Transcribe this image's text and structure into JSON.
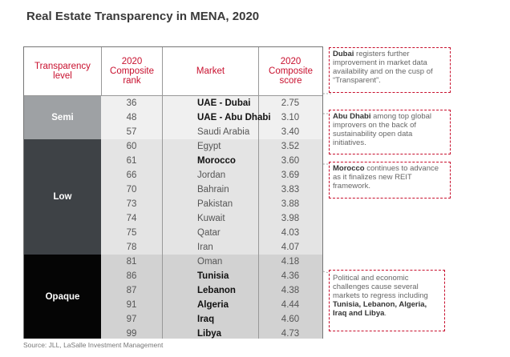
{
  "title": "Real Estate Transparency in MENA, 2020",
  "headers": {
    "level": "Transparency level",
    "rank": "2020 Composite rank",
    "market": "Market",
    "score": "2020 Composite score"
  },
  "levels": {
    "semi": "Semi",
    "low": "Low",
    "opaque": "Opaque"
  },
  "chart_data": {
    "type": "table",
    "title": "Real Estate Transparency in MENA, 2020",
    "columns": [
      "Transparency level",
      "2020 Composite rank",
      "Market",
      "2020 Composite score"
    ],
    "rows": [
      {
        "level": "Semi",
        "rank": "36",
        "market": "UAE - Dubai",
        "score": "2.75",
        "bold": true
      },
      {
        "level": "Semi",
        "rank": "48",
        "market": "UAE - Abu Dhabi",
        "score": "3.10",
        "bold": true
      },
      {
        "level": "Semi",
        "rank": "57",
        "market": "Saudi Arabia",
        "score": "3.40",
        "bold": false
      },
      {
        "level": "Low",
        "rank": "60",
        "market": "Egypt",
        "score": "3.52",
        "bold": false
      },
      {
        "level": "Low",
        "rank": "61",
        "market": "Morocco",
        "score": "3.60",
        "bold": true
      },
      {
        "level": "Low",
        "rank": "66",
        "market": "Jordan",
        "score": "3.69",
        "bold": false
      },
      {
        "level": "Low",
        "rank": "70",
        "market": "Bahrain",
        "score": "3.83",
        "bold": false
      },
      {
        "level": "Low",
        "rank": "73",
        "market": "Pakistan",
        "score": "3.88",
        "bold": false
      },
      {
        "level": "Low",
        "rank": "74",
        "market": "Kuwait",
        "score": "3.98",
        "bold": false
      },
      {
        "level": "Low",
        "rank": "75",
        "market": "Qatar",
        "score": "4.03",
        "bold": false
      },
      {
        "level": "Low",
        "rank": "78",
        "market": "Iran",
        "score": "4.07",
        "bold": false
      },
      {
        "level": "Opaque",
        "rank": "81",
        "market": "Oman",
        "score": "4.18",
        "bold": false
      },
      {
        "level": "Opaque",
        "rank": "86",
        "market": "Tunisia",
        "score": "4.36",
        "bold": true
      },
      {
        "level": "Opaque",
        "rank": "87",
        "market": "Lebanon",
        "score": "4.38",
        "bold": true
      },
      {
        "level": "Opaque",
        "rank": "91",
        "market": "Algeria",
        "score": "4.44",
        "bold": true
      },
      {
        "level": "Opaque",
        "rank": "97",
        "market": "Iraq",
        "score": "4.60",
        "bold": true
      },
      {
        "level": "Opaque",
        "rank": "99",
        "market": "Libya",
        "score": "4.73",
        "bold": true
      }
    ]
  },
  "notes": {
    "dubai": {
      "bold": "Dubai",
      "text": " registers further improvement in market data availability and on the cusp of “Transparent”."
    },
    "abudhabi": {
      "bold": "Abu Dhabi",
      "text": " among top global improvers on the back of sustainability open data initiatives."
    },
    "morocco": {
      "bold": "Morocco",
      "text": " continues to advance as it finalizes new REIT framework."
    },
    "opaque": {
      "text": "Political and economic challenges cause several markets to regress including ",
      "bold": "Tunisia, Lebanon, Algeria, Iraq and Libya",
      "end": "."
    }
  },
  "colors": {
    "accent": "#c8102e",
    "semi": "#9ea1a4",
    "low": "#3e4246",
    "opaque": "#050505"
  },
  "source": "Source: JLL, LaSalle Investment Management"
}
